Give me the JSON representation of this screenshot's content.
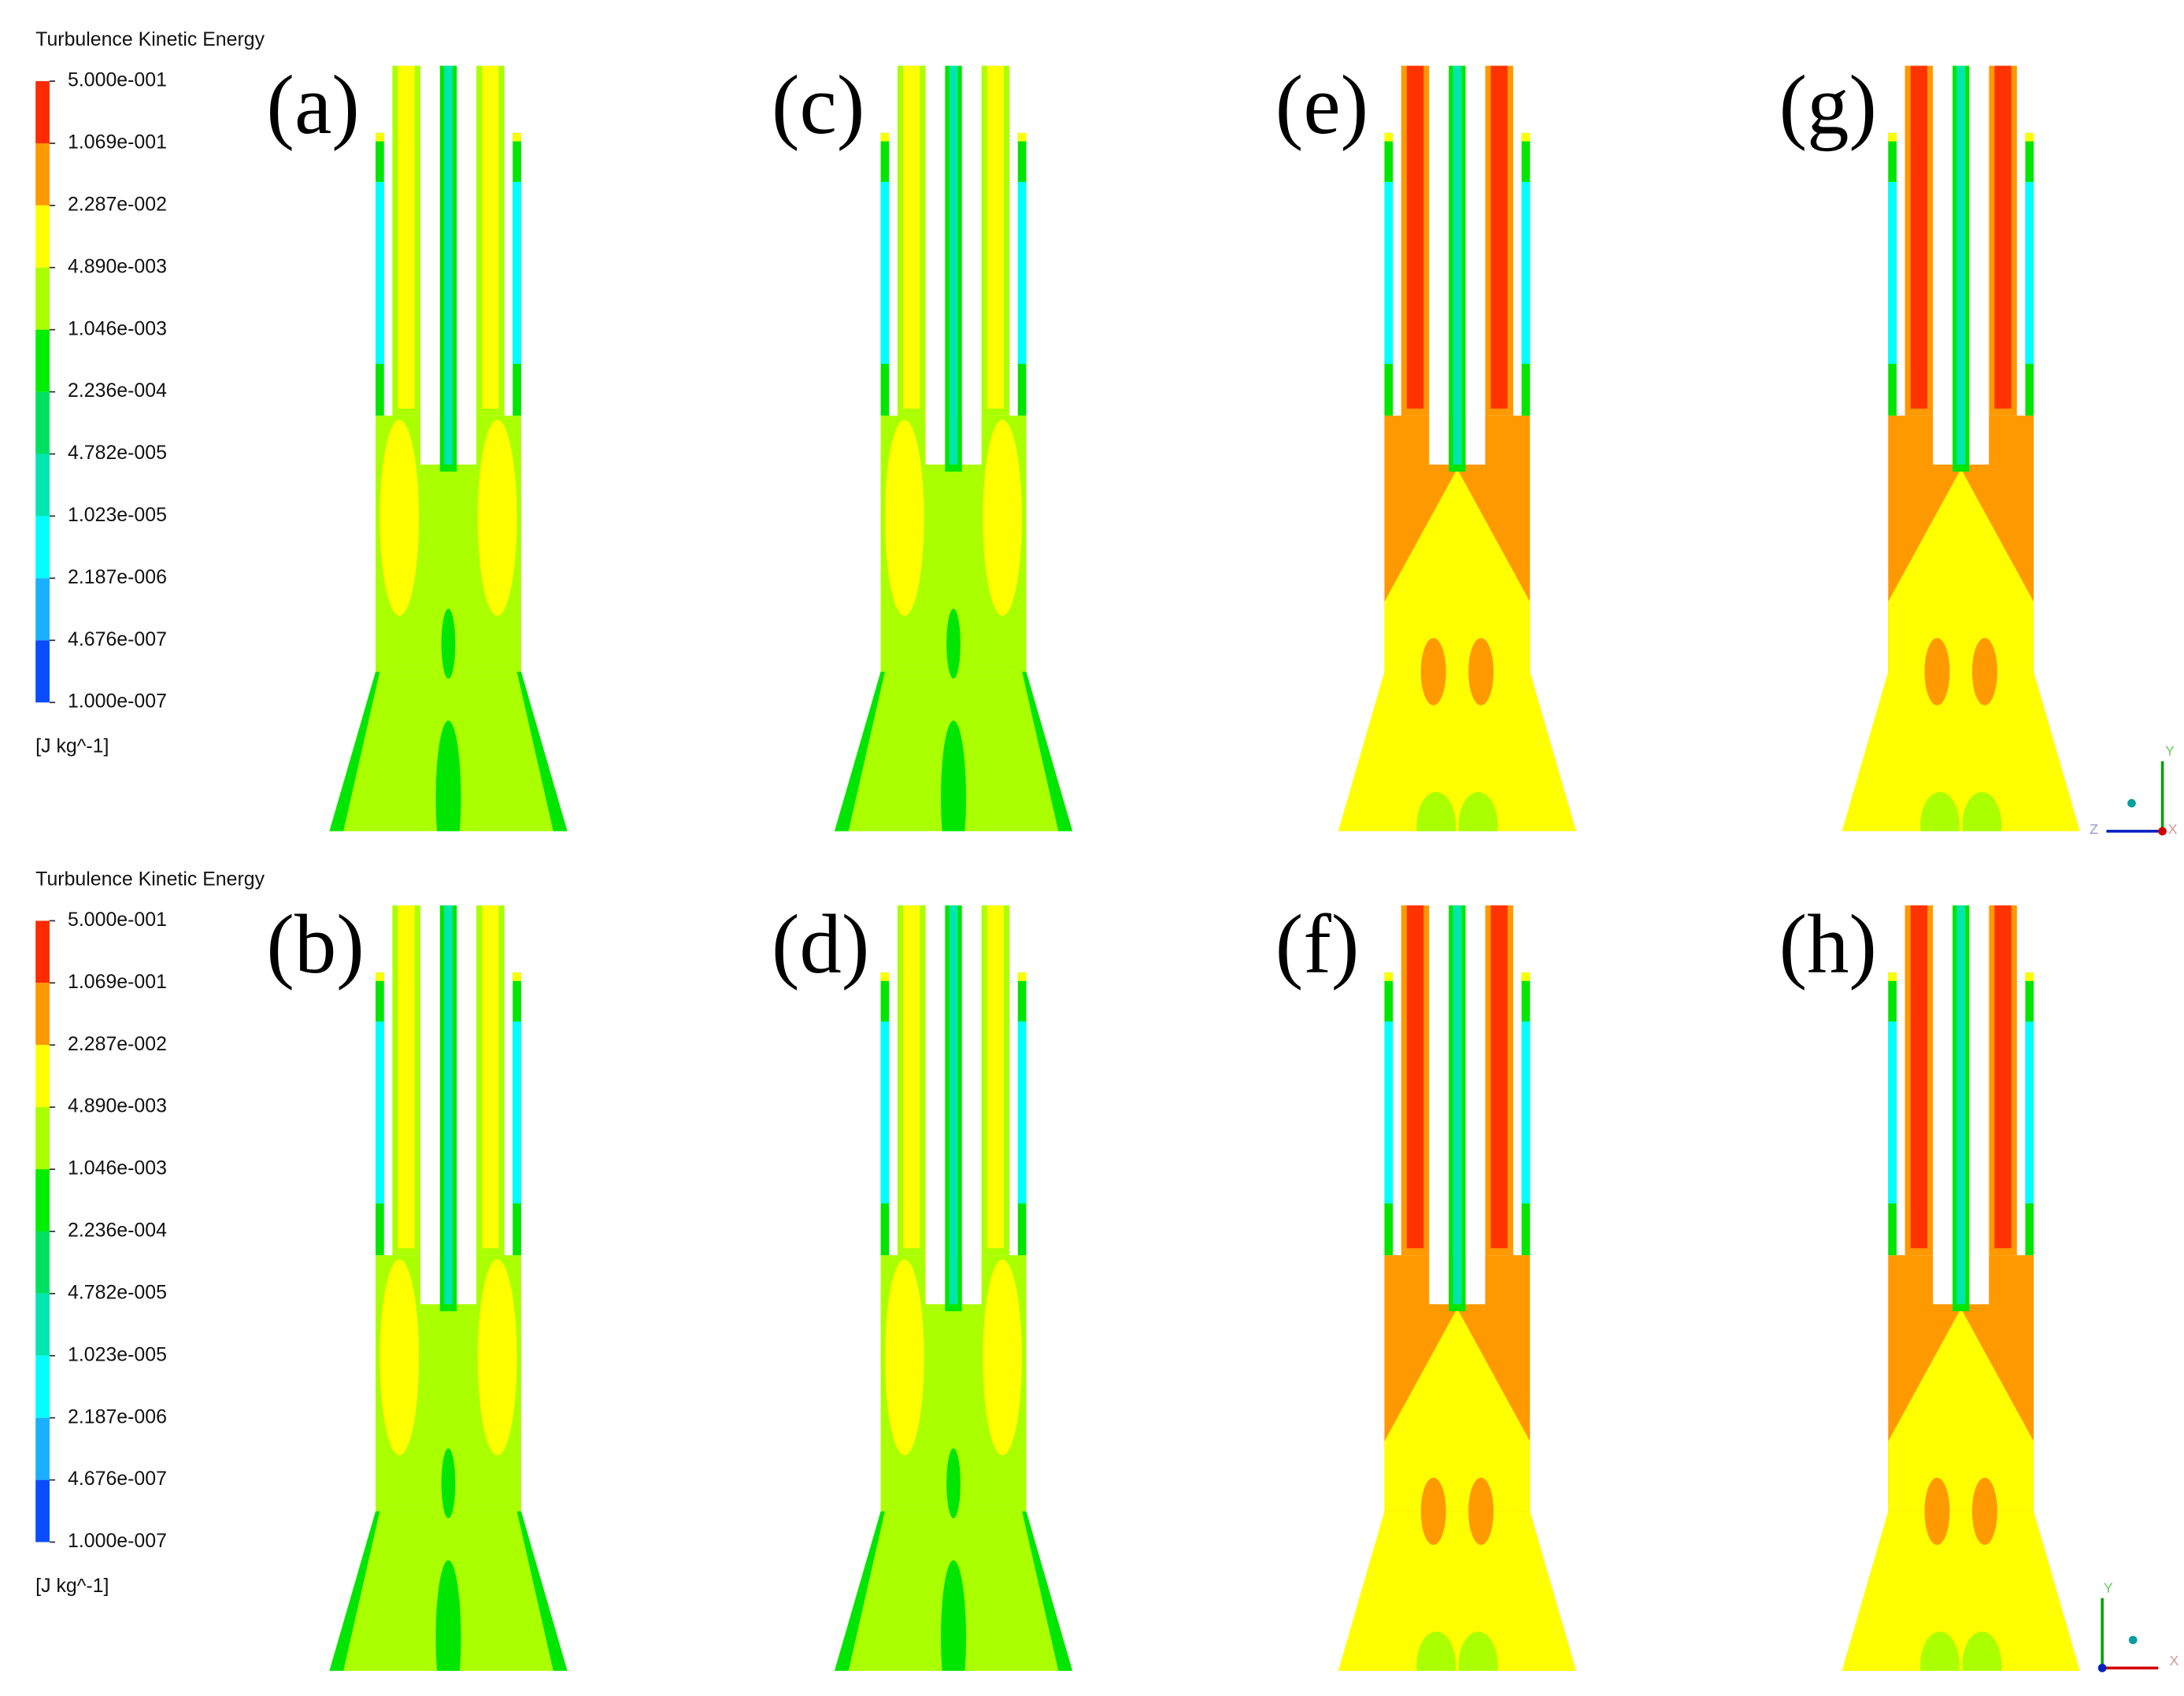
{
  "legends": [
    {
      "title": "Turbulence Kinetic Energy",
      "levels": [
        "5.000e-001",
        "1.069e-001",
        "2.287e-002",
        "4.890e-003",
        "1.046e-003",
        "2.236e-004",
        "4.782e-005",
        "1.023e-005",
        "2.187e-006",
        "4.676e-007",
        "1.000e-007"
      ],
      "units": "[J kg^-1]"
    },
    {
      "title": "Turbulence Kinetic Energy",
      "levels": [
        "5.000e-001",
        "1.069e-001",
        "2.287e-002",
        "4.890e-003",
        "1.046e-003",
        "2.236e-004",
        "4.782e-005",
        "1.023e-005",
        "2.187e-006",
        "4.676e-007",
        "1.000e-007"
      ],
      "units": "[J kg^-1]"
    }
  ],
  "panels": [
    {
      "label": "(a)"
    },
    {
      "label": "(c)"
    },
    {
      "label": "(e)"
    },
    {
      "label": "(g)"
    },
    {
      "label": "(b)"
    },
    {
      "label": "(d)"
    },
    {
      "label": "(f)"
    },
    {
      "label": "(h)"
    }
  ],
  "triads": [
    {
      "labels": [
        "Y",
        "Z",
        "X"
      ]
    },
    {
      "labels": [
        "Y",
        "X"
      ]
    }
  ]
}
